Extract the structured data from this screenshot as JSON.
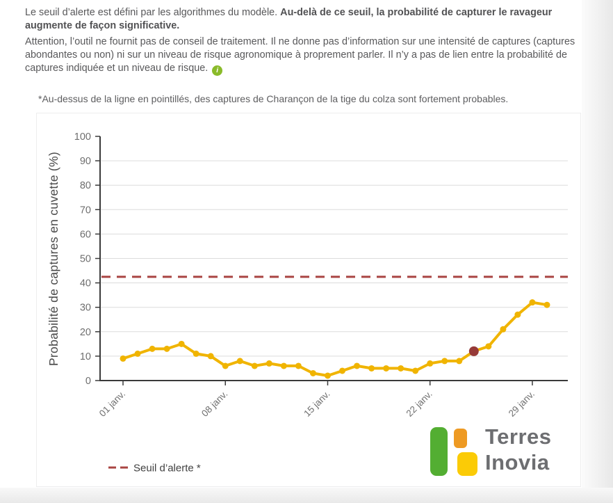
{
  "intro": {
    "p1_normal": "Le seuil d’alerte est défini par les algorithmes du modèle. ",
    "p1_bold": "Au-delà de ce seuil, la probabilité de capturer le ravageur augmente de façon significative.",
    "p2": "Attention, l’outil ne fournit pas de conseil de traitement. Il ne donne pas d’information sur une intensité de captures (captures abondantes ou non) ni sur un niveau de risque agronomique à proprement parler. Il n’y a pas de lien entre la probabilité de captures indiquée et un niveau de risque.",
    "info_icon_glyph": "i",
    "note": "*Au-dessus de la ligne en pointillés, des captures de Charançon de la tige du colza sont fortement probables."
  },
  "chart_data": {
    "type": "line",
    "title": "",
    "xlabel": "",
    "ylabel": "Probabilité de captures en cuvette (%)",
    "ylim": [
      0,
      100
    ],
    "yticks": [
      0,
      10,
      20,
      30,
      40,
      50,
      60,
      70,
      80,
      90,
      100
    ],
    "grid": true,
    "legend_position": "bottom-left",
    "x_tick_labels": [
      "01 janv.",
      "08 janv.",
      "15 janv.",
      "22 janv.",
      "29 janv."
    ],
    "x_tick_days": [
      1,
      8,
      15,
      22,
      29
    ],
    "x_days": [
      1,
      2,
      3,
      4,
      5,
      6,
      7,
      8,
      9,
      10,
      11,
      12,
      13,
      14,
      15,
      16,
      17,
      18,
      19,
      20,
      21,
      22,
      23,
      24,
      25,
      26,
      27,
      28,
      29,
      30
    ],
    "series": [
      {
        "name": "Probabilité de captures en cuvette (%)",
        "color": "#F0B400",
        "values": [
          9,
          11,
          13,
          13,
          15,
          11,
          10,
          6,
          8,
          6,
          7,
          6,
          6,
          3,
          2,
          4,
          6,
          5,
          5,
          5,
          4,
          7,
          8,
          8,
          12,
          14,
          21,
          27,
          32,
          31
        ],
        "highlight_index": 24,
        "highlight_color": "#963A38"
      }
    ],
    "threshold": {
      "label": "Seuil d’alerte *",
      "value": 42.5,
      "color": "#A94442",
      "style": "dashed"
    }
  },
  "logo": {
    "line1": "Terres",
    "line2": "Inovia",
    "green": "#53AE32",
    "orange": "#EE9A23",
    "yellow": "#FBCB06",
    "text_color": "#6D6E71"
  },
  "colors": {
    "series_yellow": "#F0B400",
    "threshold_red": "#A94442",
    "highlight_red": "#963A38",
    "info_green": "#8ABB2A",
    "body_text": "#58585A",
    "axis_text": "#6E6E6E"
  }
}
